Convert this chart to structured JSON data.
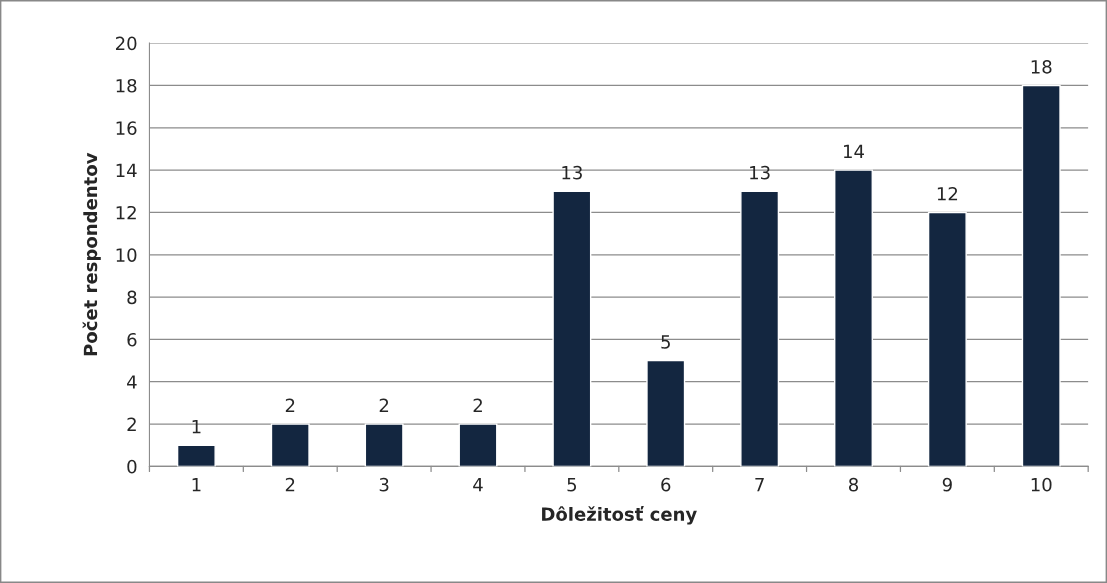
{
  "chart_data": {
    "type": "bar",
    "xlabel": "Dôležitosť ceny",
    "ylabel": "Počet respondentov",
    "categories": [
      "1",
      "2",
      "3",
      "4",
      "5",
      "6",
      "7",
      "8",
      "9",
      "10"
    ],
    "values": [
      1,
      2,
      2,
      2,
      13,
      5,
      13,
      14,
      12,
      18
    ],
    "color": "#132640",
    "ylim": [
      0,
      20
    ],
    "yticks": [
      0,
      2,
      4,
      6,
      8,
      10,
      12,
      14,
      16,
      18,
      20
    ],
    "grid": "y",
    "data_labels": true
  }
}
